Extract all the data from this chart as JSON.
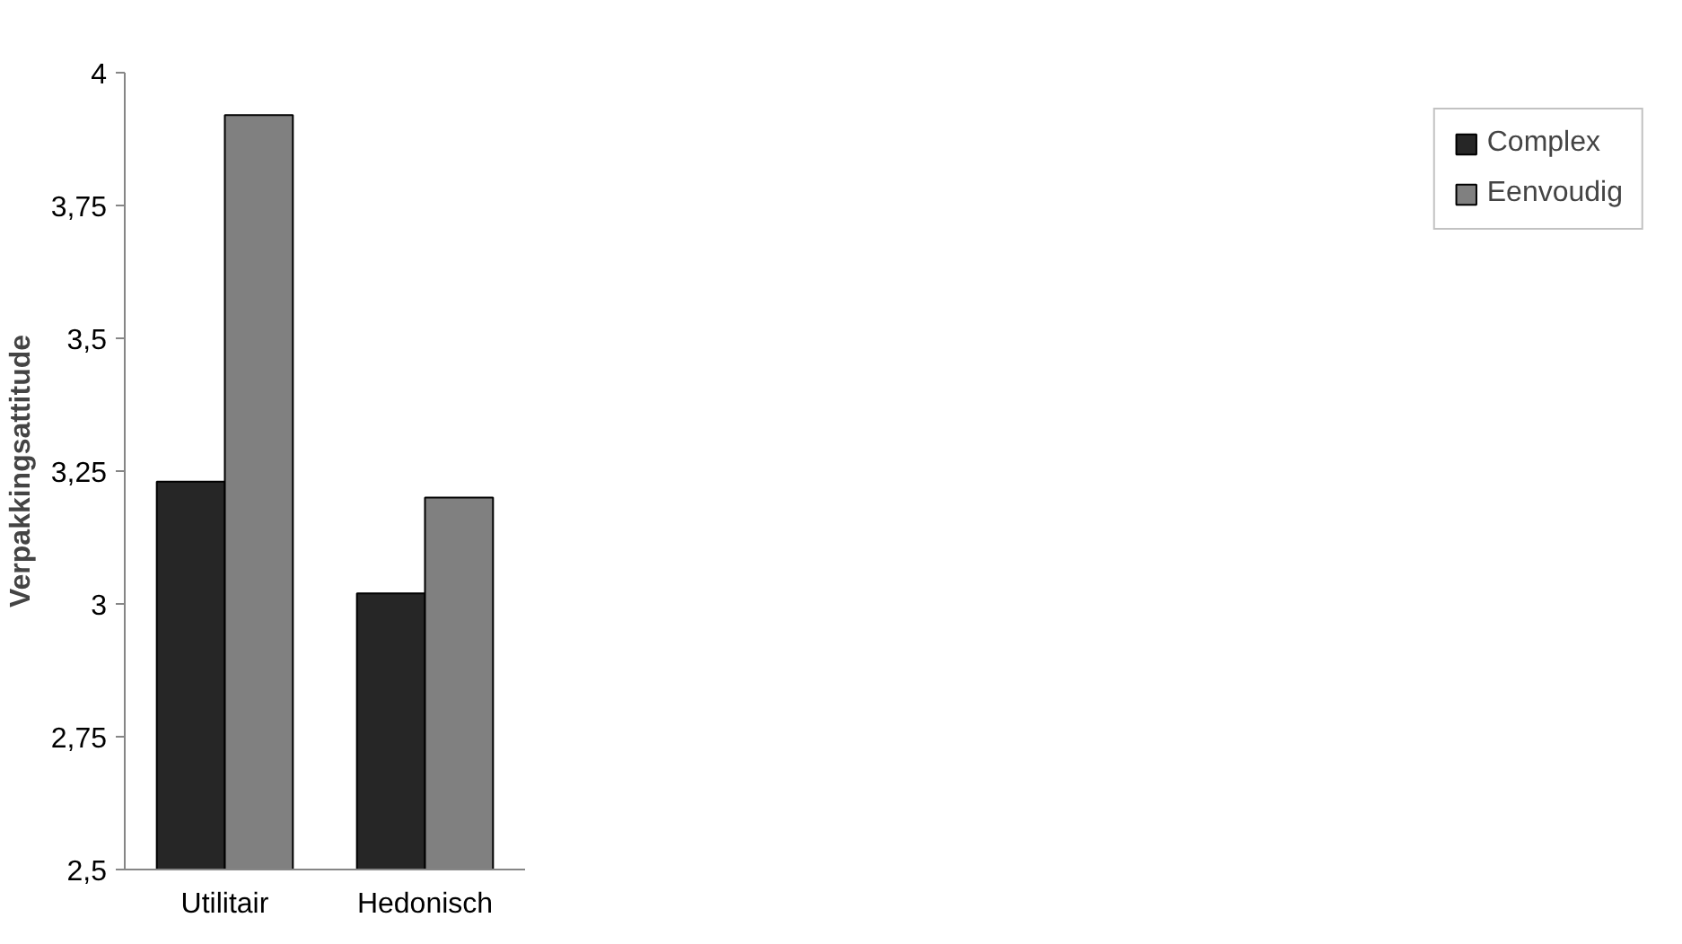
{
  "chart_data": {
    "type": "bar",
    "ylabel": "Verpakkingsattitude",
    "categories": [
      "Utilitair",
      "Hedonisch"
    ],
    "series": [
      {
        "name": "Complex",
        "color": "#262626",
        "values": [
          3.23,
          3.02
        ]
      },
      {
        "name": "Eenvoudig",
        "color": "#808080",
        "values": [
          3.92,
          3.2
        ]
      }
    ],
    "ylim": [
      2.5,
      4
    ],
    "yticks": [
      {
        "value": 2.5,
        "label": "2,5"
      },
      {
        "value": 2.75,
        "label": "2,75"
      },
      {
        "value": 3,
        "label": "3"
      },
      {
        "value": 3.25,
        "label": "3,25"
      },
      {
        "value": 3.5,
        "label": "3,5"
      },
      {
        "value": 3.75,
        "label": "3,75"
      },
      {
        "value": 4,
        "label": "4"
      }
    ],
    "grid": false,
    "legend": "right"
  }
}
